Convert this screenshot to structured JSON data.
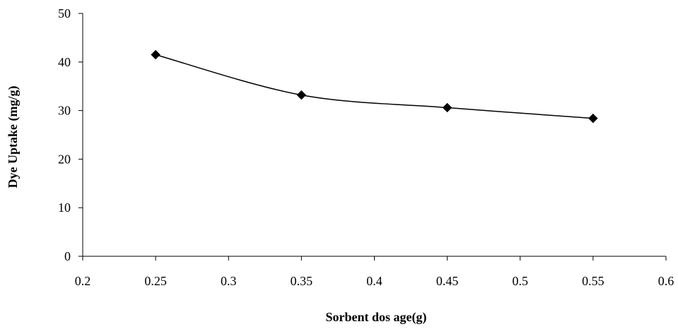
{
  "chart_data": {
    "type": "line",
    "xlabel": "Sorbent dos age(g)",
    "ylabel": "Dye Uptake (mg/g)",
    "xlim": [
      0.2,
      0.6
    ],
    "ylim": [
      0,
      50
    ],
    "x_ticks": [
      "0.2",
      "0.25",
      "0.3",
      "0.35",
      "0.4",
      "0.45",
      "0.5",
      "0.55",
      "0.6"
    ],
    "y_ticks": [
      "0",
      "10",
      "20",
      "30",
      "40",
      "50"
    ],
    "grid": false,
    "legend": "none",
    "series": [
      {
        "x": [
          0.25,
          0.35,
          0.45,
          0.55
        ],
        "y": [
          41.5,
          33.2,
          30.6,
          28.4
        ],
        "marker": "diamond",
        "color": "#000000"
      }
    ]
  }
}
